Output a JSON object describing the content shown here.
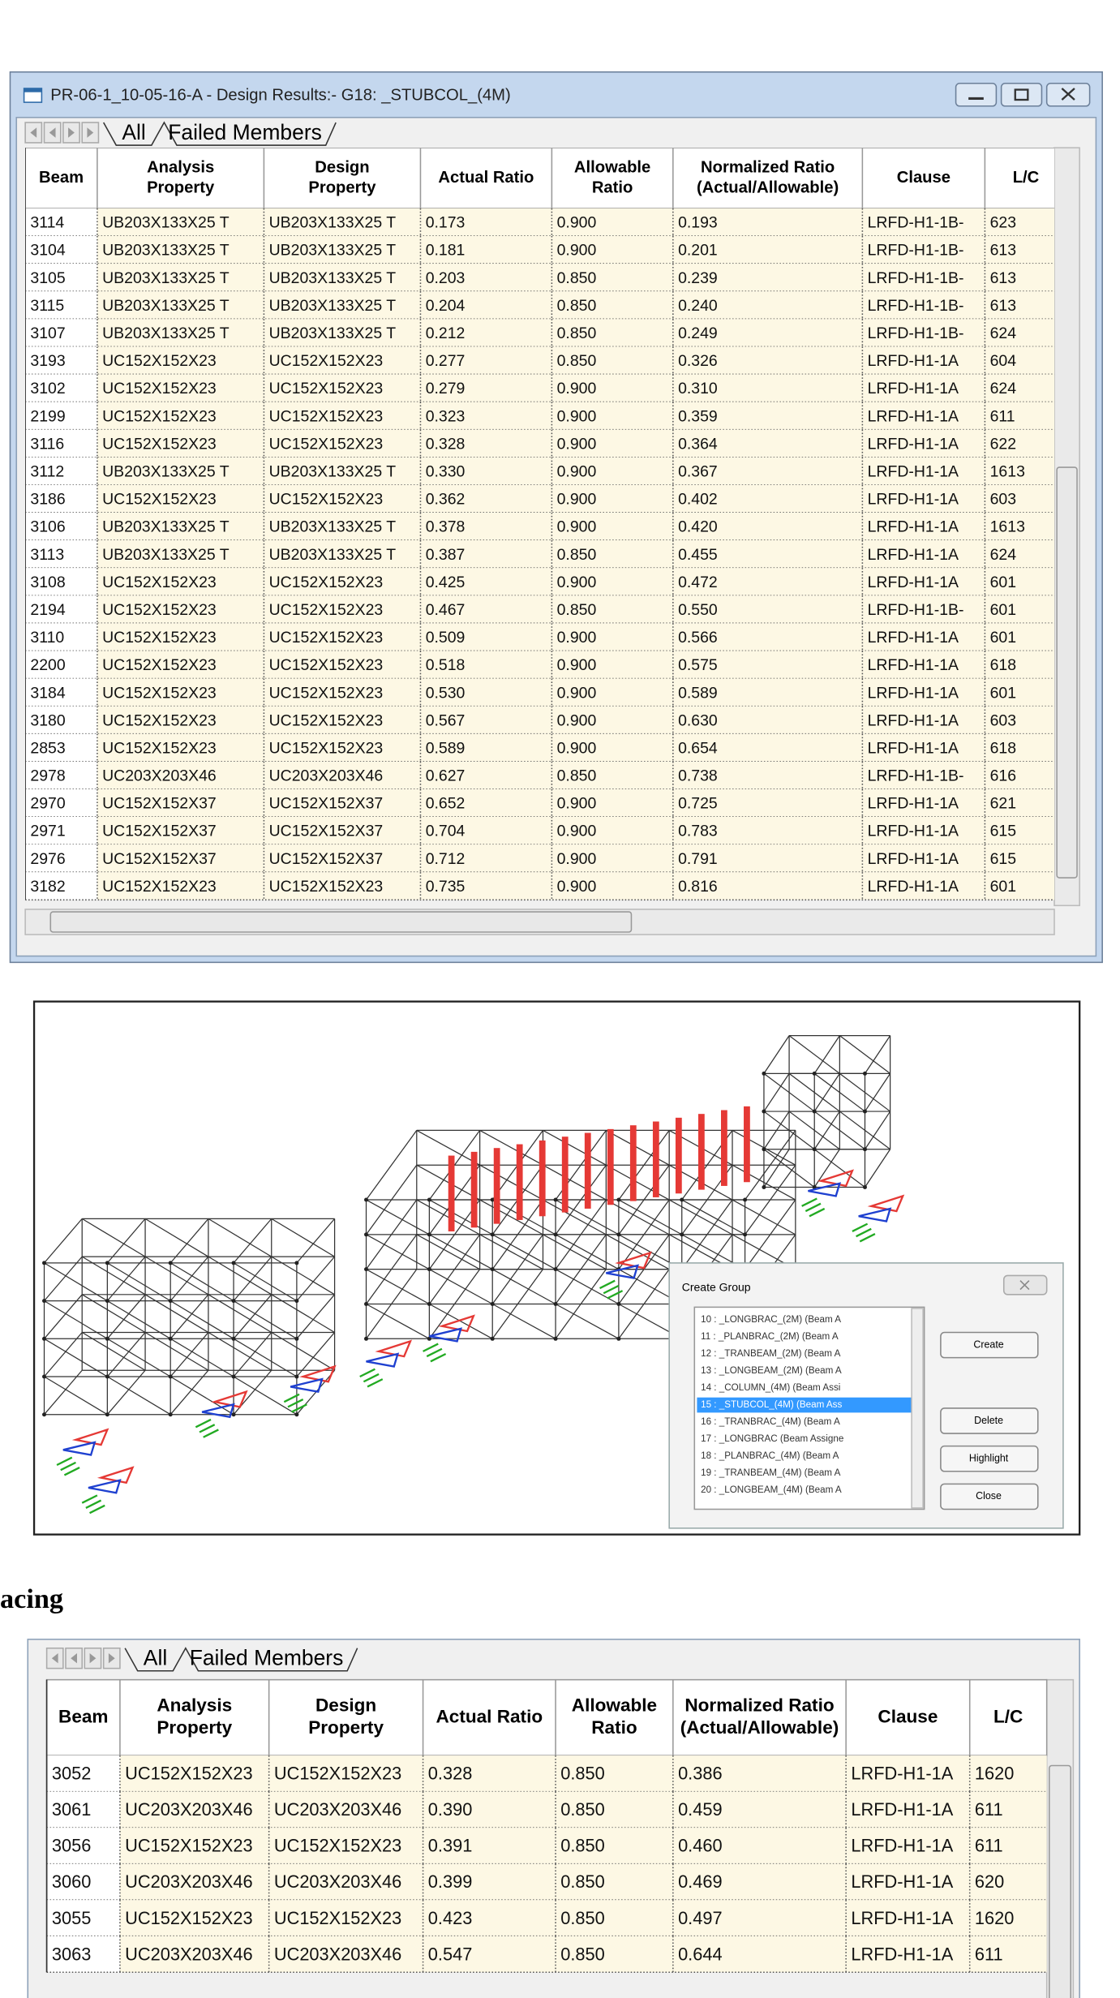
{
  "window1": {
    "title": "PR-06-1_10-05-16-A - Design Results:- G18: _STUBCOL_(4M)",
    "tabs": [
      "All",
      "Failed Members"
    ],
    "headers": [
      [
        "Beam"
      ],
      [
        "Analysis",
        "Property"
      ],
      [
        "Design",
        "Property"
      ],
      [
        "Actual Ratio"
      ],
      [
        "Allowable",
        "Ratio"
      ],
      [
        "Normalized Ratio",
        "(Actual/Allowable)"
      ],
      [
        "Clause"
      ],
      [
        "L/C"
      ]
    ],
    "rows": [
      [
        "3114",
        "UB203X133X25 T",
        "UB203X133X25 T",
        "0.173",
        "0.900",
        "0.193",
        "LRFD-H1-1B-",
        "623"
      ],
      [
        "3104",
        "UB203X133X25 T",
        "UB203X133X25 T",
        "0.181",
        "0.900",
        "0.201",
        "LRFD-H1-1B-",
        "613"
      ],
      [
        "3105",
        "UB203X133X25 T",
        "UB203X133X25 T",
        "0.203",
        "0.850",
        "0.239",
        "LRFD-H1-1B-",
        "613"
      ],
      [
        "3115",
        "UB203X133X25 T",
        "UB203X133X25 T",
        "0.204",
        "0.850",
        "0.240",
        "LRFD-H1-1B-",
        "613"
      ],
      [
        "3107",
        "UB203X133X25 T",
        "UB203X133X25 T",
        "0.212",
        "0.850",
        "0.249",
        "LRFD-H1-1B-",
        "624"
      ],
      [
        "3193",
        "UC152X152X23",
        "UC152X152X23",
        "0.277",
        "0.850",
        "0.326",
        "LRFD-H1-1A",
        "604"
      ],
      [
        "3102",
        "UC152X152X23",
        "UC152X152X23",
        "0.279",
        "0.900",
        "0.310",
        "LRFD-H1-1A",
        "624"
      ],
      [
        "2199",
        "UC152X152X23",
        "UC152X152X23",
        "0.323",
        "0.900",
        "0.359",
        "LRFD-H1-1A",
        "611"
      ],
      [
        "3116",
        "UC152X152X23",
        "UC152X152X23",
        "0.328",
        "0.900",
        "0.364",
        "LRFD-H1-1A",
        "622"
      ],
      [
        "3112",
        "UB203X133X25 T",
        "UB203X133X25 T",
        "0.330",
        "0.900",
        "0.367",
        "LRFD-H1-1A",
        "1613"
      ],
      [
        "3186",
        "UC152X152X23",
        "UC152X152X23",
        "0.362",
        "0.900",
        "0.402",
        "LRFD-H1-1A",
        "603"
      ],
      [
        "3106",
        "UB203X133X25 T",
        "UB203X133X25 T",
        "0.378",
        "0.900",
        "0.420",
        "LRFD-H1-1A",
        "1613"
      ],
      [
        "3113",
        "UB203X133X25 T",
        "UB203X133X25 T",
        "0.387",
        "0.850",
        "0.455",
        "LRFD-H1-1A",
        "624"
      ],
      [
        "3108",
        "UC152X152X23",
        "UC152X152X23",
        "0.425",
        "0.900",
        "0.472",
        "LRFD-H1-1A",
        "601"
      ],
      [
        "2194",
        "UC152X152X23",
        "UC152X152X23",
        "0.467",
        "0.850",
        "0.550",
        "LRFD-H1-1B-",
        "601"
      ],
      [
        "3110",
        "UC152X152X23",
        "UC152X152X23",
        "0.509",
        "0.900",
        "0.566",
        "LRFD-H1-1A",
        "601"
      ],
      [
        "2200",
        "UC152X152X23",
        "UC152X152X23",
        "0.518",
        "0.900",
        "0.575",
        "LRFD-H1-1A",
        "618"
      ],
      [
        "3184",
        "UC152X152X23",
        "UC152X152X23",
        "0.530",
        "0.900",
        "0.589",
        "LRFD-H1-1A",
        "601"
      ],
      [
        "3180",
        "UC152X152X23",
        "UC152X152X23",
        "0.567",
        "0.900",
        "0.630",
        "LRFD-H1-1A",
        "603"
      ],
      [
        "2853",
        "UC152X152X23",
        "UC152X152X23",
        "0.589",
        "0.900",
        "0.654",
        "LRFD-H1-1A",
        "618"
      ],
      [
        "2978",
        "UC203X203X46",
        "UC203X203X46",
        "0.627",
        "0.850",
        "0.738",
        "LRFD-H1-1B-",
        "616"
      ],
      [
        "2970",
        "UC152X152X37",
        "UC152X152X37",
        "0.652",
        "0.900",
        "0.725",
        "LRFD-H1-1A",
        "621"
      ],
      [
        "2971",
        "UC152X152X37",
        "UC152X152X37",
        "0.704",
        "0.900",
        "0.783",
        "LRFD-H1-1A",
        "615"
      ],
      [
        "2976",
        "UC152X152X37",
        "UC152X152X37",
        "0.712",
        "0.900",
        "0.791",
        "LRFD-H1-1A",
        "615"
      ],
      [
        "3182",
        "UC152X152X23",
        "UC152X152X23",
        "0.735",
        "0.900",
        "0.816",
        "LRFD-H1-1A",
        "601"
      ]
    ]
  },
  "image_panel": {
    "dialog": {
      "title": "Create Group",
      "items": [
        "10 : _LONGBRAC_(2M) (Beam A",
        "11 : _PLANBRAC_(2M) (Beam A",
        "12 : _TRANBEAM_(2M) (Beam A",
        "13 : _LONGBEAM_(2M) (Beam A",
        "14 : _COLUMN_(4M) (Beam Assi",
        "15 : _STUBCOL_(4M) (Beam Ass",
        "16 : _TRANBRAC_(4M) (Beam A",
        "17 : _LONGBRAC (Beam Assigne",
        "18 : _PLANBRAC_(4M) (Beam A",
        "19 : _TRANBEAM_(4M) (Beam A",
        "20 : _LONGBEAM_(4M) (Beam A"
      ],
      "buttons": [
        "Create",
        "Delete",
        "Highlight",
        "Close"
      ]
    }
  },
  "section_heading": "acing",
  "window2": {
    "tabs": [
      "All",
      "Failed Members"
    ],
    "headers": [
      [
        "Beam"
      ],
      [
        "Analysis",
        "Property"
      ],
      [
        "Design",
        "Property"
      ],
      [
        "Actual Ratio"
      ],
      [
        "Allowable",
        "Ratio"
      ],
      [
        "Normalized Ratio",
        "(Actual/Allowable)"
      ],
      [
        "Clause"
      ],
      [
        "L/C"
      ]
    ],
    "rows": [
      [
        "3052",
        "UC152X152X23",
        "UC152X152X23",
        "0.328",
        "0.850",
        "0.386",
        "LRFD-H1-1A",
        "1620"
      ],
      [
        "3061",
        "UC203X203X46",
        "UC203X203X46",
        "0.390",
        "0.850",
        "0.459",
        "LRFD-H1-1A",
        "611"
      ],
      [
        "3056",
        "UC152X152X23",
        "UC152X152X23",
        "0.391",
        "0.850",
        "0.460",
        "LRFD-H1-1A",
        "611"
      ],
      [
        "3060",
        "UC203X203X46",
        "UC203X203X46",
        "0.399",
        "0.850",
        "0.469",
        "LRFD-H1-1A",
        "620"
      ],
      [
        "3055",
        "UC152X152X23",
        "UC152X152X23",
        "0.423",
        "0.850",
        "0.497",
        "LRFD-H1-1A",
        "1620"
      ],
      [
        "3063",
        "UC203X203X46",
        "UC203X203X46",
        "0.547",
        "0.850",
        "0.644",
        "LRFD-H1-1A",
        "611"
      ]
    ]
  }
}
